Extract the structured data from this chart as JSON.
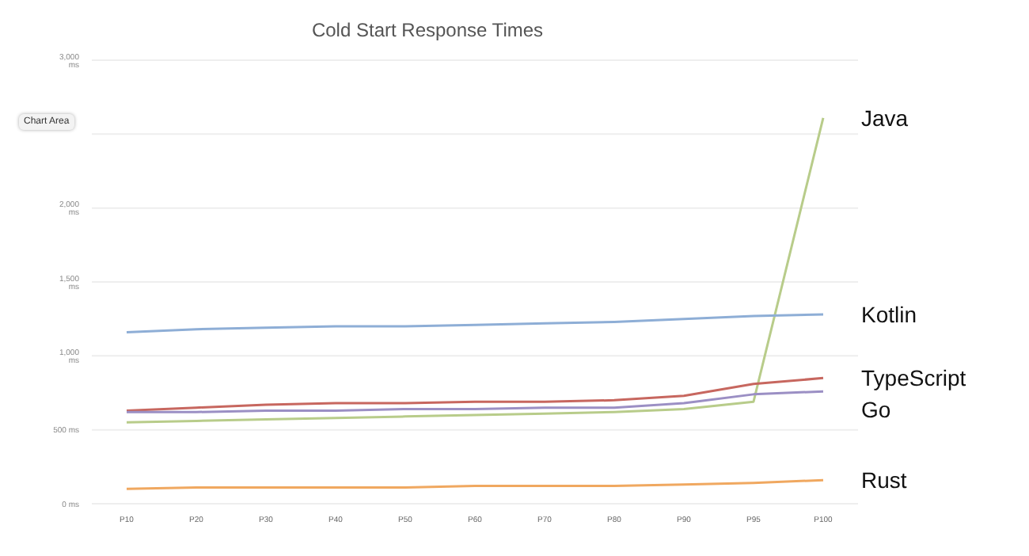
{
  "chart_data": {
    "type": "line",
    "title": "Cold Start Response Times",
    "categories": [
      "P10",
      "P20",
      "P30",
      "P40",
      "P50",
      "P60",
      "P70",
      "P80",
      "P90",
      "P95",
      "P100"
    ],
    "series": [
      {
        "name": "Java",
        "color": "#b8cc8a",
        "values": [
          550,
          560,
          570,
          580,
          590,
          600,
          610,
          620,
          640,
          690,
          2610
        ]
      },
      {
        "name": "Kotlin",
        "color": "#8eaed6",
        "values": [
          1160,
          1180,
          1190,
          1200,
          1200,
          1210,
          1220,
          1230,
          1250,
          1270,
          1280
        ]
      },
      {
        "name": "TypeScript",
        "color": "#c7675f",
        "values": [
          630,
          650,
          670,
          680,
          680,
          690,
          690,
          700,
          730,
          810,
          850
        ]
      },
      {
        "name": "Go",
        "color": "#9b8fc4",
        "values": [
          620,
          620,
          630,
          630,
          640,
          640,
          650,
          650,
          680,
          740,
          760
        ]
      },
      {
        "name": "Rust",
        "color": "#f0a860",
        "values": [
          100,
          110,
          110,
          110,
          110,
          120,
          120,
          120,
          130,
          140,
          160
        ]
      }
    ],
    "ylim": [
      0,
      3000
    ],
    "yticks": [
      {
        "value": 0,
        "label": "0 ms"
      },
      {
        "value": 500,
        "label": "500 ms"
      },
      {
        "value": 1000,
        "label": "1,000 ms"
      },
      {
        "value": 1500,
        "label": "1,500 ms"
      },
      {
        "value": 2000,
        "label": "2,000 ms"
      },
      {
        "value": 2500,
        "label": null
      },
      {
        "value": 3000,
        "label": "3,000 ms"
      }
    ],
    "annotations": [
      "Chart Area"
    ],
    "grid": "y",
    "legend": false,
    "marker": "none",
    "line_style": "solid"
  }
}
